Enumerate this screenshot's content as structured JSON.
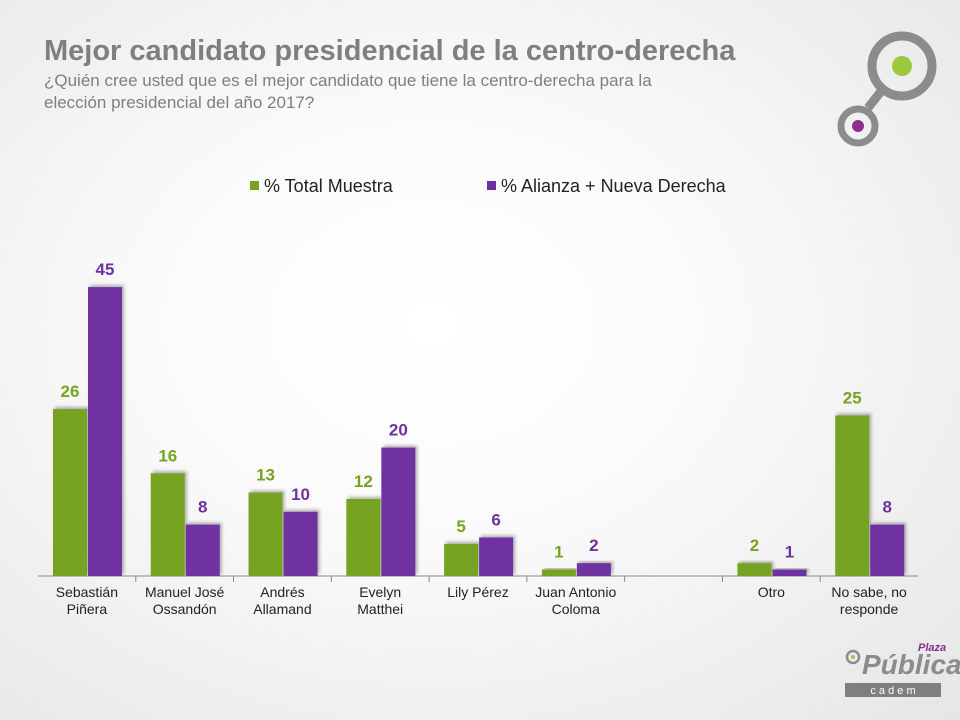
{
  "chart_data": {
    "type": "bar",
    "title": "Mejor candidato presidencial de la centro-derecha",
    "subtitle": [
      "¿Quién cree usted que es el mejor candidato que tiene la centro-derecha para la",
      "elección presidencial del año 2017?"
    ],
    "categories": [
      "Sebastián\nPiñera",
      "Manuel José\nOssandón",
      "Andrés\nAllamand",
      "Evelyn\nMatthei",
      "Lily Pérez",
      "Juan Antonio\nColoma",
      null,
      "Otro",
      "No sabe, no\nresponde"
    ],
    "series": [
      {
        "name": "% Total Muestra",
        "color": "#76a320",
        "values": [
          26,
          16,
          13,
          12,
          5,
          1,
          null,
          2,
          25
        ]
      },
      {
        "name": "% Alianza + Nueva Derecha",
        "color": "#7030a0",
        "values": [
          45,
          8,
          10,
          20,
          6,
          2,
          null,
          1,
          8
        ]
      }
    ],
    "legend": "top"
  },
  "logo": {
    "small": "Plaza",
    "main": "Pública",
    "sub": "c a d e m"
  }
}
